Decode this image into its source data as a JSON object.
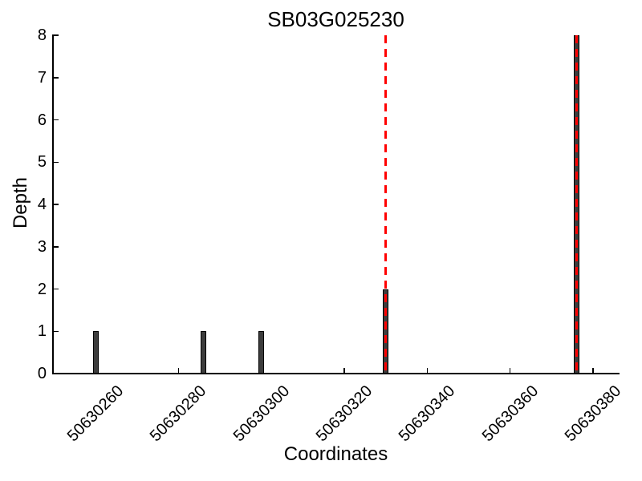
{
  "chart_data": {
    "type": "bar",
    "title": "SB03G025230",
    "xlabel": "Coordinates",
    "ylabel": "Depth",
    "xlim": [
      50630249.7,
      50630386.2
    ],
    "ylim": [
      0,
      8
    ],
    "x_ticks": [
      50630260,
      50630280,
      50630300,
      50630320,
      50630340,
      50630360,
      50630380
    ],
    "y_ticks": [
      0,
      1,
      2,
      3,
      4,
      5,
      6,
      7,
      8
    ],
    "grid": false,
    "legend_position": "none",
    "bars": [
      {
        "x": 50630260,
        "depth": 1
      },
      {
        "x": 50630286,
        "depth": 1
      },
      {
        "x": 50630300,
        "depth": 1
      },
      {
        "x": 50630330,
        "depth": 2
      },
      {
        "x": 50630376,
        "depth": 8
      }
    ],
    "bar_width_units": 1.36,
    "marker_lines_x": [
      50630330,
      50630376
    ],
    "marker_line_style": "dashed",
    "colors": {
      "bar_fill": "#3d3d3d",
      "bar_edge": "#000000",
      "marker_line": "#ff0000",
      "axis": "#000000",
      "background": "#ffffff",
      "text": "#000000"
    }
  }
}
